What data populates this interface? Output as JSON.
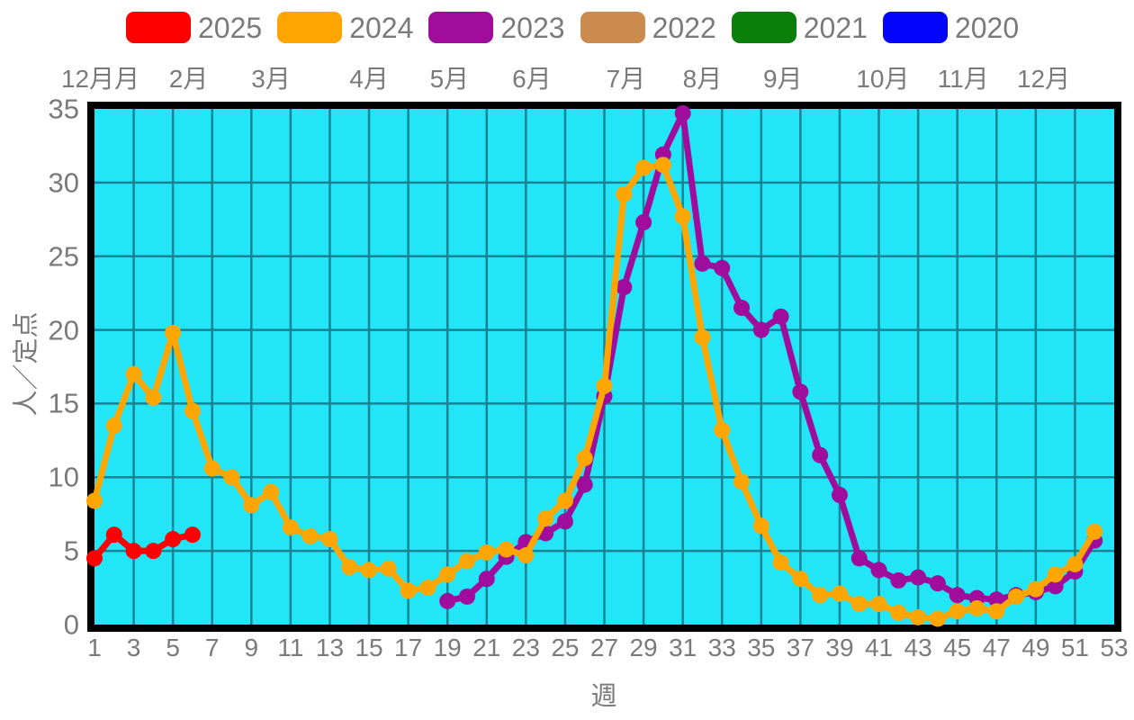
{
  "colors": {
    "background": "#FFFFFF",
    "plot_background": "#23E5F8",
    "grid": "#1A8292",
    "plot_border": "#000000",
    "text": "#7A7A7A"
  },
  "legend": {
    "items": [
      {
        "label": "2025",
        "color": "#FF0000"
      },
      {
        "label": "2024",
        "color": "#FFA500"
      },
      {
        "label": "2023",
        "color": "#A00C9B"
      },
      {
        "label": "2022",
        "color": "#CB8B4E"
      },
      {
        "label": "2021",
        "color": "#0A7F0A"
      },
      {
        "label": "2020",
        "color": "#0404FC"
      }
    ]
  },
  "months": [
    {
      "label": "12月月",
      "week": 1.3
    },
    {
      "label": "2月",
      "week": 5.8
    },
    {
      "label": "3月",
      "week": 10.0
    },
    {
      "label": "4月",
      "week": 15.0
    },
    {
      "label": "5月",
      "week": 19.1
    },
    {
      "label": "6月",
      "week": 23.3
    },
    {
      "label": "7月",
      "week": 28.1
    },
    {
      "label": "8月",
      "week": 32.0
    },
    {
      "label": "9月",
      "week": 36.1
    },
    {
      "label": "10月",
      "week": 41.2
    },
    {
      "label": "11月",
      "week": 45.3
    },
    {
      "label": "12月",
      "week": 49.4
    }
  ],
  "axes": {
    "y_title": "人／定点",
    "x_title": "週",
    "y_ticks": [
      0,
      5,
      10,
      15,
      20,
      25,
      30,
      35
    ],
    "x_ticks": [
      1,
      3,
      5,
      7,
      9,
      11,
      13,
      15,
      17,
      19,
      21,
      23,
      25,
      27,
      29,
      31,
      33,
      35,
      37,
      39,
      41,
      43,
      45,
      47,
      49,
      51,
      53
    ]
  },
  "chart_data": {
    "type": "line",
    "title": "",
    "xlabel": "週",
    "ylabel": "人／定点",
    "x_range": [
      1,
      53
    ],
    "y_range": [
      0,
      35
    ],
    "grid": true,
    "legend_position": "top",
    "series": [
      {
        "name": "2025",
        "color": "#FF0000",
        "x_start": 1,
        "values": [
          4.5,
          6.1,
          5.0,
          5.0,
          5.8,
          6.1
        ]
      },
      {
        "name": "2024",
        "color": "#FFA500",
        "x_start": 1,
        "values": [
          8.4,
          13.5,
          17.0,
          15.4,
          19.8,
          14.5,
          10.6,
          10.0,
          8.1,
          9.0,
          6.6,
          6.0,
          5.8,
          3.9,
          3.7,
          3.8,
          2.3,
          2.5,
          3.4,
          4.3,
          4.9,
          5.1,
          4.7,
          7.2,
          8.4,
          11.3,
          16.2,
          29.2,
          31.0,
          31.2,
          27.7,
          19.5,
          13.2,
          9.7,
          6.7,
          4.2,
          3.1,
          2.0,
          2.1,
          1.4,
          1.4,
          0.8,
          0.5,
          0.4,
          0.9,
          1.1,
          0.9,
          1.9,
          2.4,
          3.4,
          4.1,
          6.3
        ]
      },
      {
        "name": "2023",
        "color": "#A00C9B",
        "x_start": 19,
        "values": [
          1.6,
          1.9,
          3.1,
          4.6,
          5.6,
          6.2,
          7.0,
          9.5,
          15.5,
          22.9,
          27.3,
          31.9,
          34.7,
          24.5,
          24.2,
          21.5,
          20.0,
          20.9,
          15.8,
          11.5,
          8.8,
          4.5,
          3.7,
          3.0,
          3.2,
          2.8,
          2.0,
          1.8,
          1.7,
          2.0,
          2.2,
          2.6,
          3.6,
          5.7
        ]
      },
      {
        "name": "2022",
        "color": "#CB8B4E",
        "x_start": 1,
        "values": []
      },
      {
        "name": "2021",
        "color": "#0A7F0A",
        "x_start": 1,
        "values": []
      },
      {
        "name": "2020",
        "color": "#0404FC",
        "x_start": 1,
        "values": []
      }
    ]
  }
}
